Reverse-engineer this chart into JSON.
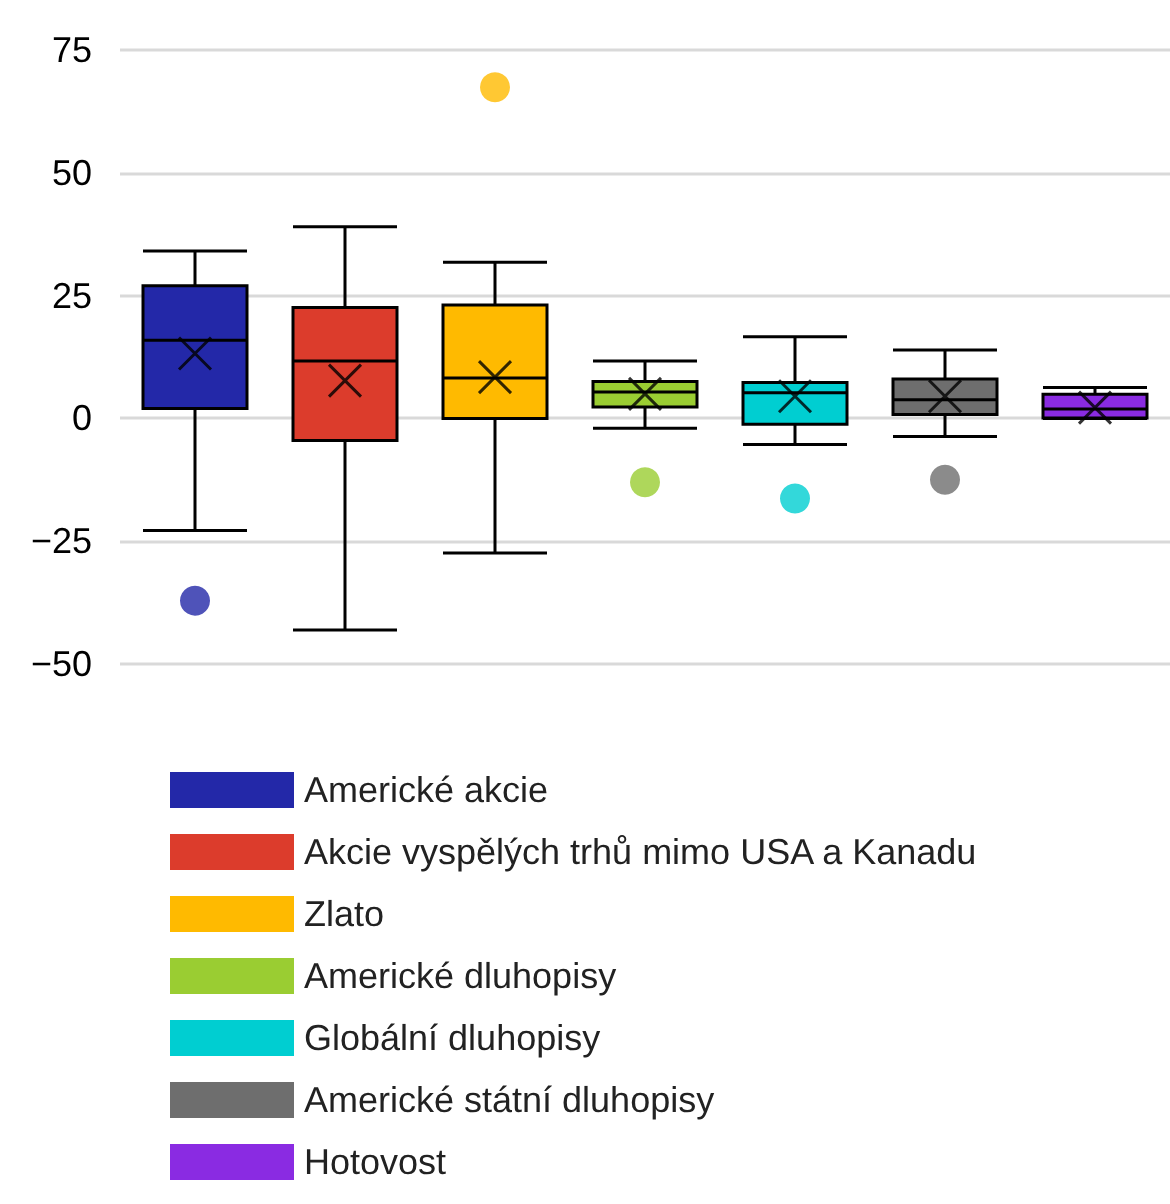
{
  "chart_data": {
    "type": "box",
    "categories": [
      null,
      null,
      null,
      null,
      null,
      null,
      null
    ],
    "ylim": [
      -50,
      75
    ],
    "yticks": [
      {
        "value": -50,
        "label": "−50"
      },
      {
        "value": -25,
        "label": "−25"
      },
      0,
      25,
      50,
      75
    ],
    "grid": "y",
    "legend": "bottom",
    "tick_labels": "y",
    "series": [
      {
        "name": "Americké akcie",
        "color": "#2328a8",
        "boxes": [
          {
            "low": -22.8,
            "q1": 2,
            "median": 15.9,
            "q3": 27,
            "high": 34.1,
            "mean": 13.2,
            "outliers": [
              -37.1
            ]
          },
          null,
          null,
          null,
          null,
          null,
          null
        ]
      },
      {
        "name": "Akcie vyspělých trhů mimo USA a Kanadu",
        "color": "#dc3c2c",
        "boxes": [
          null,
          {
            "low": -43.1,
            "q1": -4.5,
            "median": 11.7,
            "q3": 22.6,
            "high": 39,
            "mean": 7.7
          },
          null,
          null,
          null,
          null,
          null
        ]
      },
      {
        "name": "Zlato",
        "color": "#ffba00",
        "boxes": [
          null,
          null,
          {
            "low": -27.4,
            "q1": 0,
            "median": 8.2,
            "q3": 23.1,
            "high": 31.8,
            "mean": 8.4,
            "outliers": [
              67.4
            ]
          },
          null,
          null,
          null,
          null
        ]
      },
      {
        "name": "Americké dluhopisy",
        "color": "#9acd32",
        "boxes": [
          null,
          null,
          null,
          {
            "low": -2,
            "q1": 2.3,
            "median": 5.4,
            "q3": 7.5,
            "high": 11.7,
            "mean": 5,
            "outliers": [
              -13
            ]
          },
          null,
          null,
          null
        ]
      },
      {
        "name": "Globální dluhopisy",
        "color": "#00ced1",
        "boxes": [
          null,
          null,
          null,
          null,
          {
            "low": -5.3,
            "q1": -1.2,
            "median": 5.2,
            "q3": 7.3,
            "high": 16.6,
            "mean": 4.5,
            "outliers": [
              -16.3
            ]
          },
          null,
          null
        ]
      },
      {
        "name": "Americké státní dluhopisy",
        "color": "#6e6e6e",
        "boxes": [
          null,
          null,
          null,
          null,
          null,
          {
            "low": -3.7,
            "q1": 0.8,
            "median": 3.8,
            "q3": 8,
            "high": 13.9,
            "mean": 4.5,
            "outliers": [
              -12.5
            ]
          },
          null
        ]
      },
      {
        "name": "Hotovost",
        "color": "#8a2be2",
        "boxes": [
          null,
          null,
          null,
          null,
          null,
          null,
          {
            "low": 0,
            "q1": 0.1,
            "median": 1.9,
            "q3": 4.9,
            "high": 6.3,
            "mean": 2.2
          }
        ]
      }
    ]
  }
}
